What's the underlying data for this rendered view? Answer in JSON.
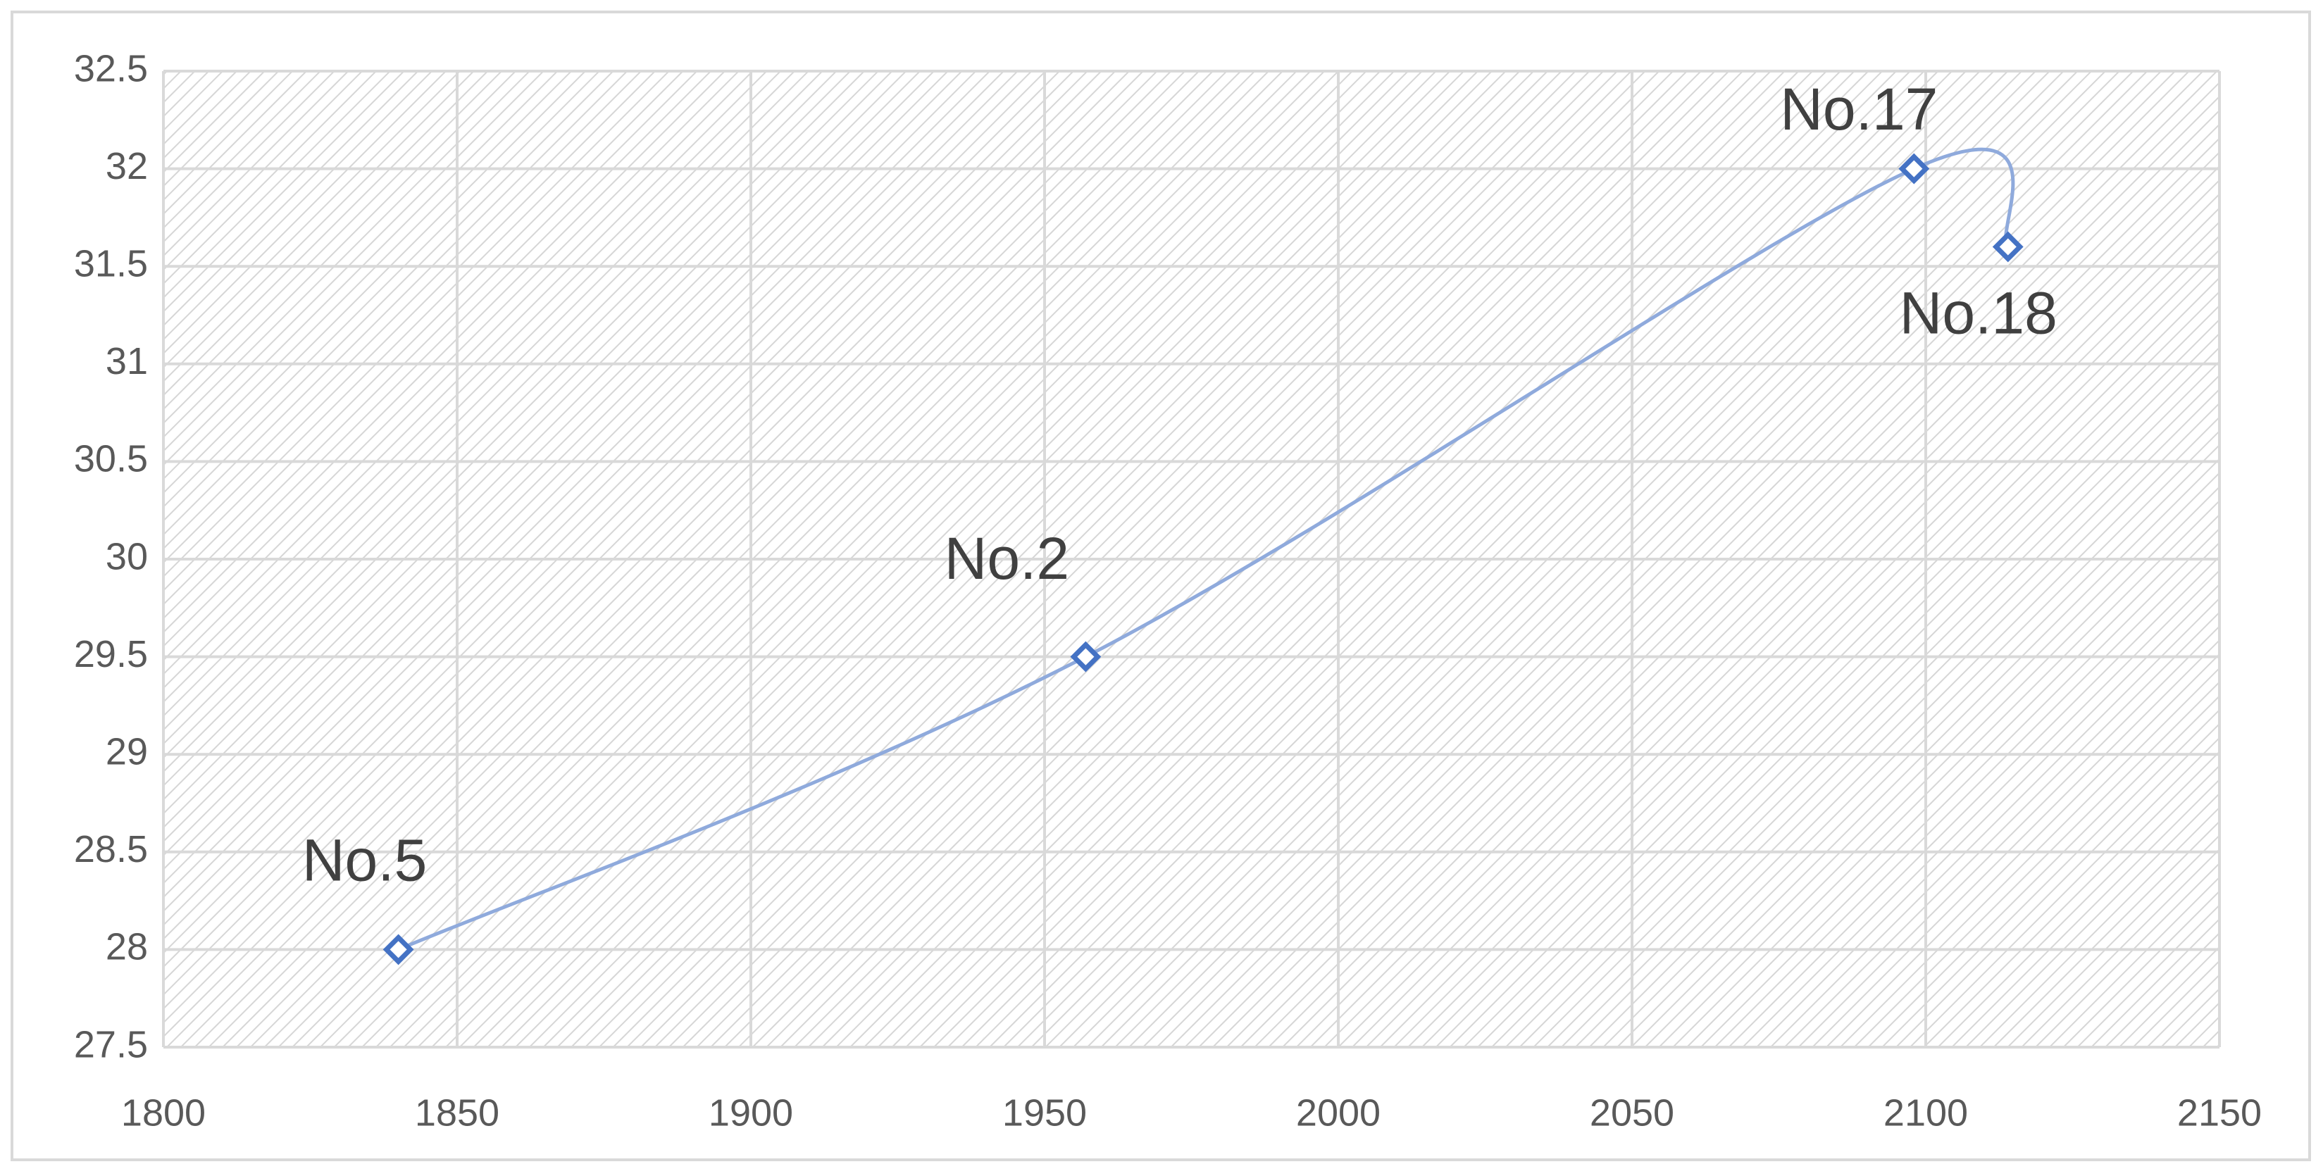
{
  "chart_data": {
    "type": "scatter-line",
    "x": [
      1840,
      1957,
      2098,
      2114
    ],
    "values": [
      28,
      29.5,
      32,
      31.6
    ],
    "point_labels": [
      "No.5",
      "No.2",
      "No.17",
      "No.18"
    ],
    "color": "#4472c4",
    "line_color": "#8faadc",
    "xlim": [
      1800,
      2150
    ],
    "xticks": [
      1800,
      1850,
      1900,
      1950,
      2000,
      2050,
      2100,
      2150
    ],
    "ylim": [
      27.5,
      32.5
    ],
    "yticks": [
      27.5,
      28,
      28.5,
      29,
      29.5,
      30,
      30.5,
      31,
      31.5,
      32,
      32.5
    ],
    "grid": true,
    "smooth": true
  }
}
